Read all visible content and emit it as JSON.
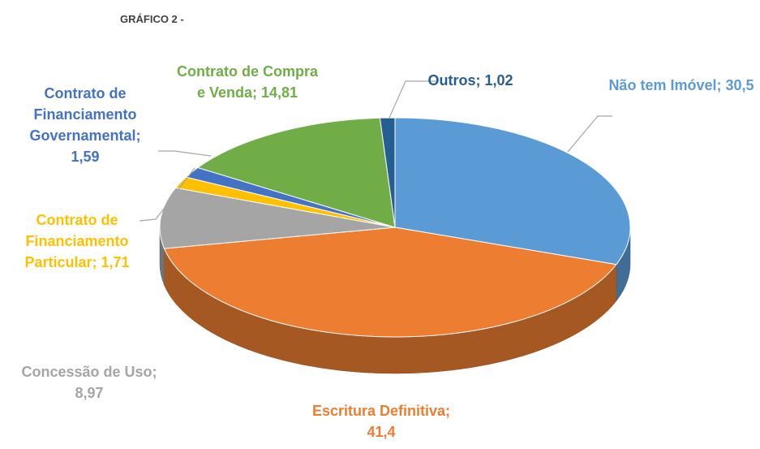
{
  "chart_data": {
    "type": "pie3d",
    "title": "GRÁFICO 2 -",
    "categories": [
      "Não tem Imóvel;",
      "Escritura Definitiva;",
      "Concessão de Uso;",
      "Contrato de Financiamento Particular;",
      "Contrato de Financiamento Governamental;",
      "Contrato de Compra e Venda;",
      "Outros;"
    ],
    "values": [
      30.5,
      41.4,
      8.97,
      1.71,
      1.59,
      14.81,
      1.02
    ],
    "value_labels": [
      "30,5",
      "41,4",
      "8,97",
      "1,71",
      "1,59",
      "14,81",
      "1,02"
    ],
    "colors": [
      "#5b9bd5",
      "#ed7d31",
      "#a5a5a5",
      "#ffc000",
      "#4472c4",
      "#70ad47",
      "#255e91"
    ]
  }
}
